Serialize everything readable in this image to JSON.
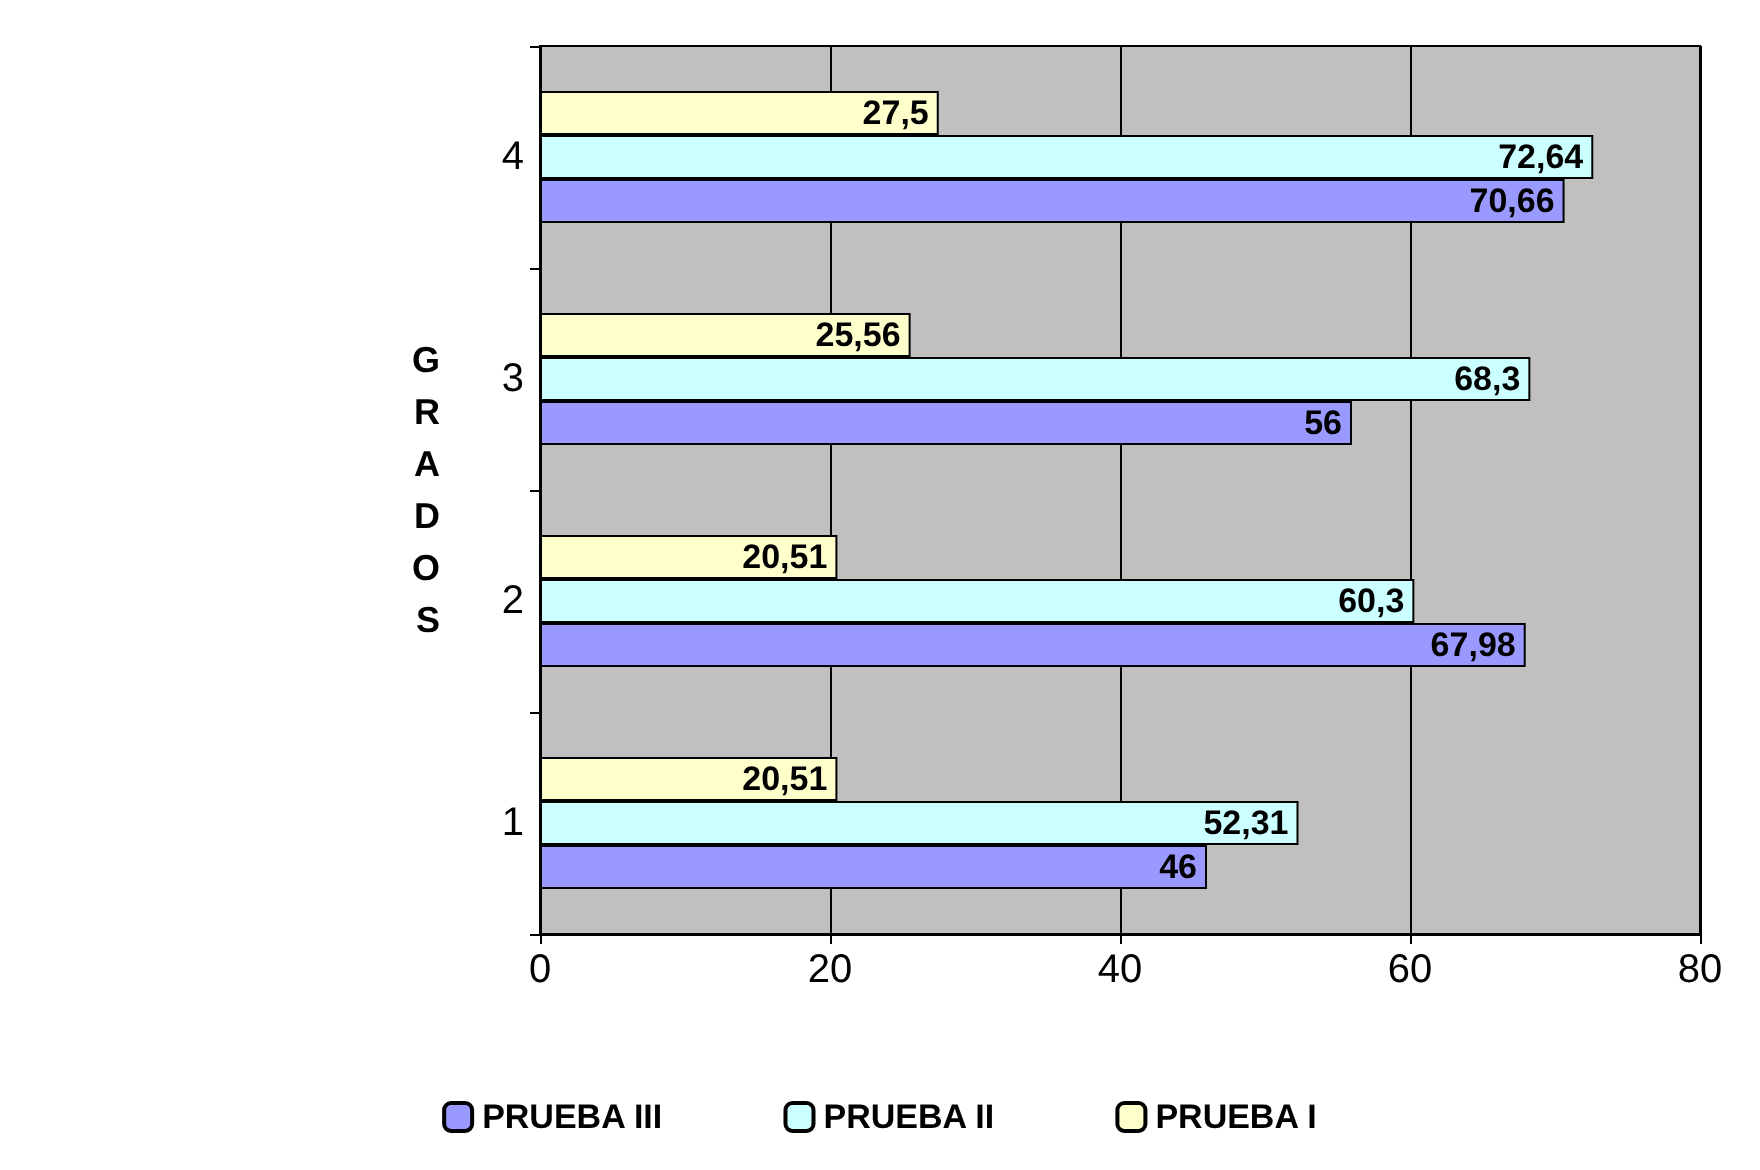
{
  "chart_data": {
    "type": "bar",
    "orientation": "horizontal",
    "ylabel": "GRADOS",
    "categories": [
      "4",
      "3",
      "2",
      "1"
    ],
    "series": [
      {
        "name": "PRUEBA I",
        "color": "#ffffcc",
        "values": [
          27.5,
          25.56,
          20.51,
          20.51
        ],
        "value_labels": [
          "27,5",
          "25,56",
          "20,51",
          "20,51"
        ]
      },
      {
        "name": "PRUEBA II",
        "color": "#ccffff",
        "values": [
          72.64,
          68.3,
          60.3,
          52.31
        ],
        "value_labels": [
          "72,64",
          "68,3",
          "60,3",
          "52,31"
        ]
      },
      {
        "name": "PRUEBA III",
        "color": "#9999ff",
        "values": [
          70.66,
          56,
          67.98,
          46
        ],
        "value_labels": [
          "70,66",
          "56",
          "67,98",
          "46"
        ]
      }
    ],
    "xlim": [
      0,
      80
    ],
    "xticks": [
      0,
      20,
      40,
      60,
      80
    ],
    "grid": "x",
    "legend": "bottom"
  }
}
